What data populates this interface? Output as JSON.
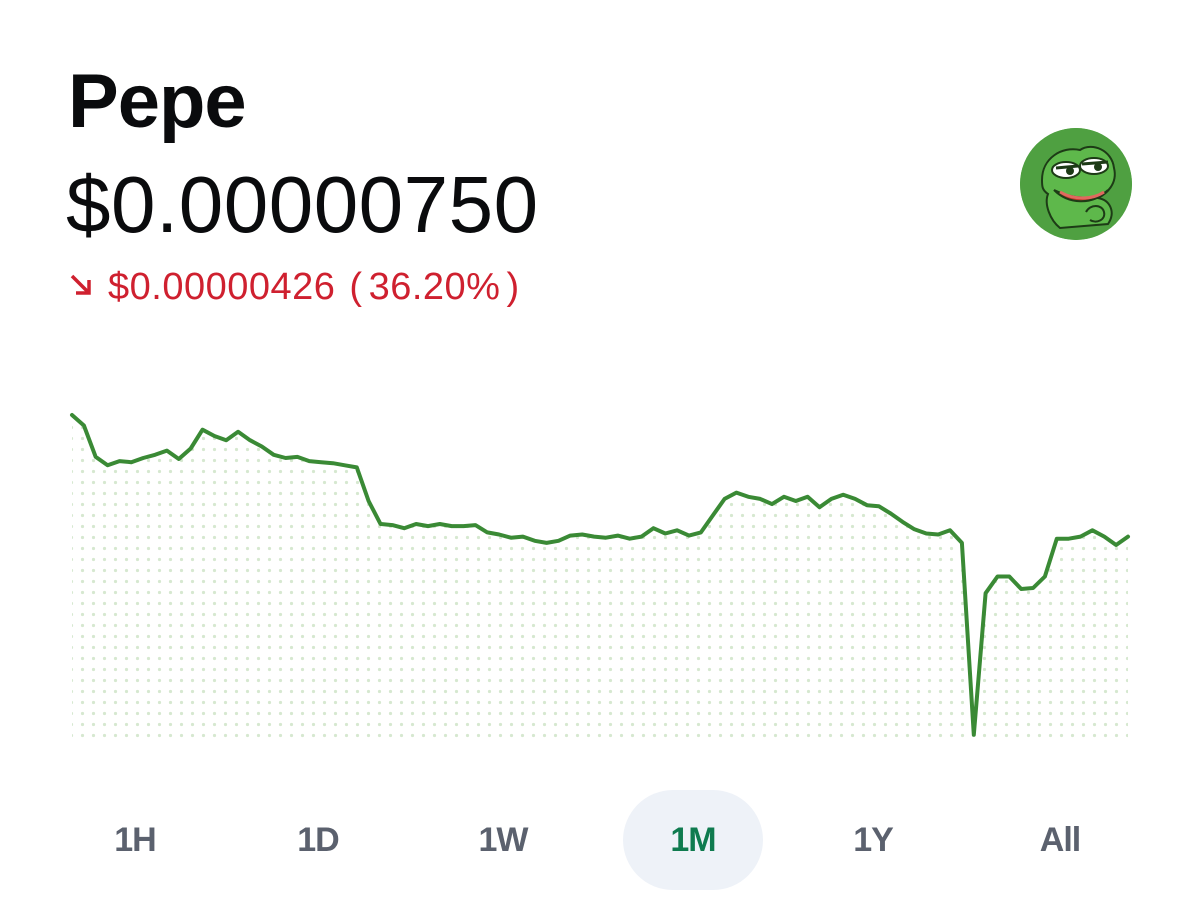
{
  "asset": {
    "name": "Pepe",
    "price": "$0.00000750",
    "change": {
      "direction_icon": "arrow-down-right-icon",
      "amount": "$0.00000426",
      "percent": "36.20%",
      "color": "#cf202f"
    },
    "logo_icon": "pepe-frog-avatar-icon"
  },
  "chart_data": {
    "type": "line",
    "period": "1M",
    "line_color": "#3a8a35",
    "fill_pattern": "dotted",
    "y": [
      3.1,
      3.0,
      2.7,
      2.62,
      2.66,
      2.65,
      2.69,
      2.72,
      2.76,
      2.68,
      2.78,
      2.96,
      2.9,
      2.86,
      2.94,
      2.86,
      2.8,
      2.72,
      2.69,
      2.7,
      2.66,
      2.65,
      2.64,
      2.62,
      2.6,
      2.28,
      2.06,
      2.05,
      2.02,
      2.06,
      2.04,
      2.06,
      2.04,
      2.04,
      2.05,
      1.98,
      1.96,
      1.93,
      1.94,
      1.9,
      1.88,
      1.9,
      1.95,
      1.96,
      1.94,
      1.93,
      1.95,
      1.92,
      1.94,
      2.02,
      1.97,
      2.0,
      1.95,
      1.98,
      2.14,
      2.3,
      2.36,
      2.32,
      2.3,
      2.25,
      2.32,
      2.28,
      2.32,
      2.22,
      2.3,
      2.34,
      2.3,
      2.24,
      2.23,
      2.16,
      2.08,
      2.01,
      1.97,
      1.96,
      2.0,
      1.88,
      0.05,
      1.4,
      1.56,
      1.56,
      1.44,
      1.45,
      1.56,
      1.92,
      1.92,
      1.94,
      2.0,
      1.94,
      1.86,
      1.94
    ]
  },
  "ranges": [
    {
      "label": "1H",
      "active": false
    },
    {
      "label": "1D",
      "active": false
    },
    {
      "label": "1W",
      "active": false
    },
    {
      "label": "1M",
      "active": true
    },
    {
      "label": "1Y",
      "active": false
    },
    {
      "label": "All",
      "active": false
    }
  ]
}
